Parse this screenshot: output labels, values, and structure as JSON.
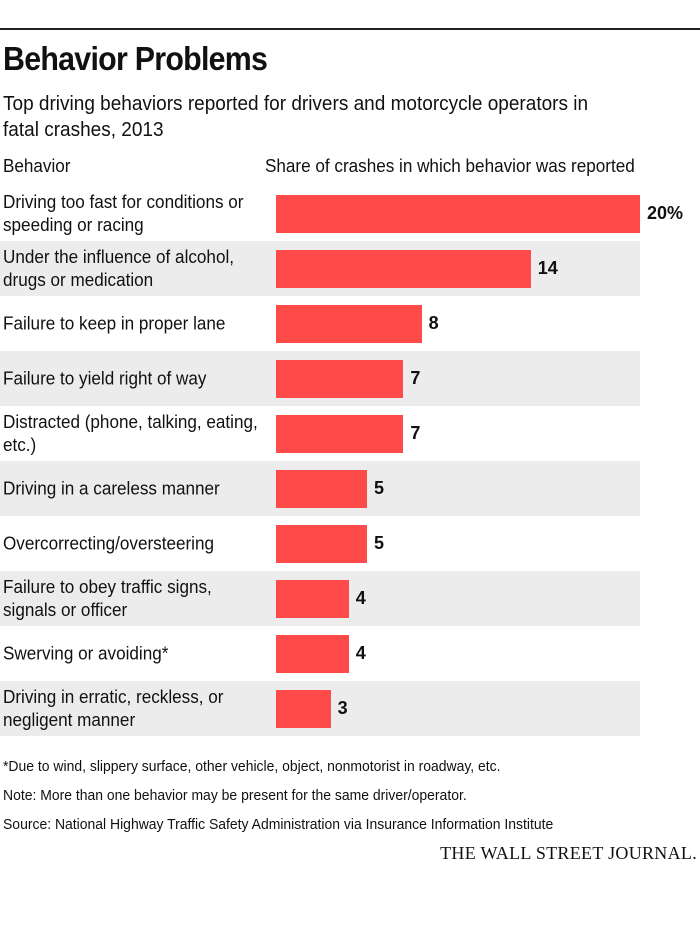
{
  "title": "Behavior Problems",
  "subtitle": "Top driving behaviors reported for drivers and motorcycle operators in fatal crashes, 2013",
  "column_headers": {
    "behavior": "Behavior",
    "share": "Share of crashes in which behavior was reported"
  },
  "colors": {
    "bar": "#ff4a4a",
    "shade": "#ececec"
  },
  "chart_data": {
    "type": "bar",
    "orientation": "horizontal",
    "unit": "%",
    "xlim": [
      0,
      20
    ],
    "categories": [
      "Driving too fast for conditions or speeding or racing",
      "Under the influence of alcohol, drugs or medication",
      "Failure to keep in proper lane",
      "Failure to yield right of way",
      "Distracted (phone, talking, eating, etc.)",
      "Driving in a careless manner",
      "Overcorrecting/oversteering",
      "Failure to obey traffic signs, signals or officer",
      "Swerving or avoiding*",
      "Driving in erratic, reckless, or negligent manner"
    ],
    "values": [
      20,
      14,
      8,
      7,
      7,
      5,
      5,
      4,
      4,
      3
    ],
    "value_labels": [
      "20%",
      "14",
      "8",
      "7",
      "7",
      "5",
      "5",
      "4",
      "4",
      "3"
    ]
  },
  "notes": {
    "footnote": "*Due to wind, slippery surface, other vehicle, object, nonmotorist in roadway, etc.",
    "note": "Note: More than one behavior may be present for the same driver/operator.",
    "source": "Source: National Highway Traffic Safety Administration via Insurance Information Institute"
  },
  "publisher": "THE WALL STREET JOURNAL."
}
